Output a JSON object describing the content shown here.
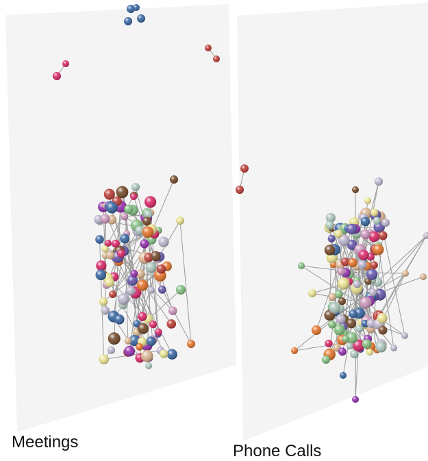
{
  "panels": [
    {
      "caption": "Meetings",
      "plane_color": "#f4f4f4"
    },
    {
      "caption": "Phone Calls",
      "plane_color": "#f4f4f4"
    }
  ],
  "colors": {
    "edge": "#9a9a9a",
    "node_palette": [
      "#7dbb7a",
      "#b9b2cc",
      "#e8e08a",
      "#d8b08a",
      "#c88fb6",
      "#e36c1f",
      "#b8332c",
      "#d81b60",
      "#8e24aa",
      "#2c5d9c",
      "#6b3f1d",
      "#5b4ea8",
      "#a7c3b8"
    ]
  }
}
